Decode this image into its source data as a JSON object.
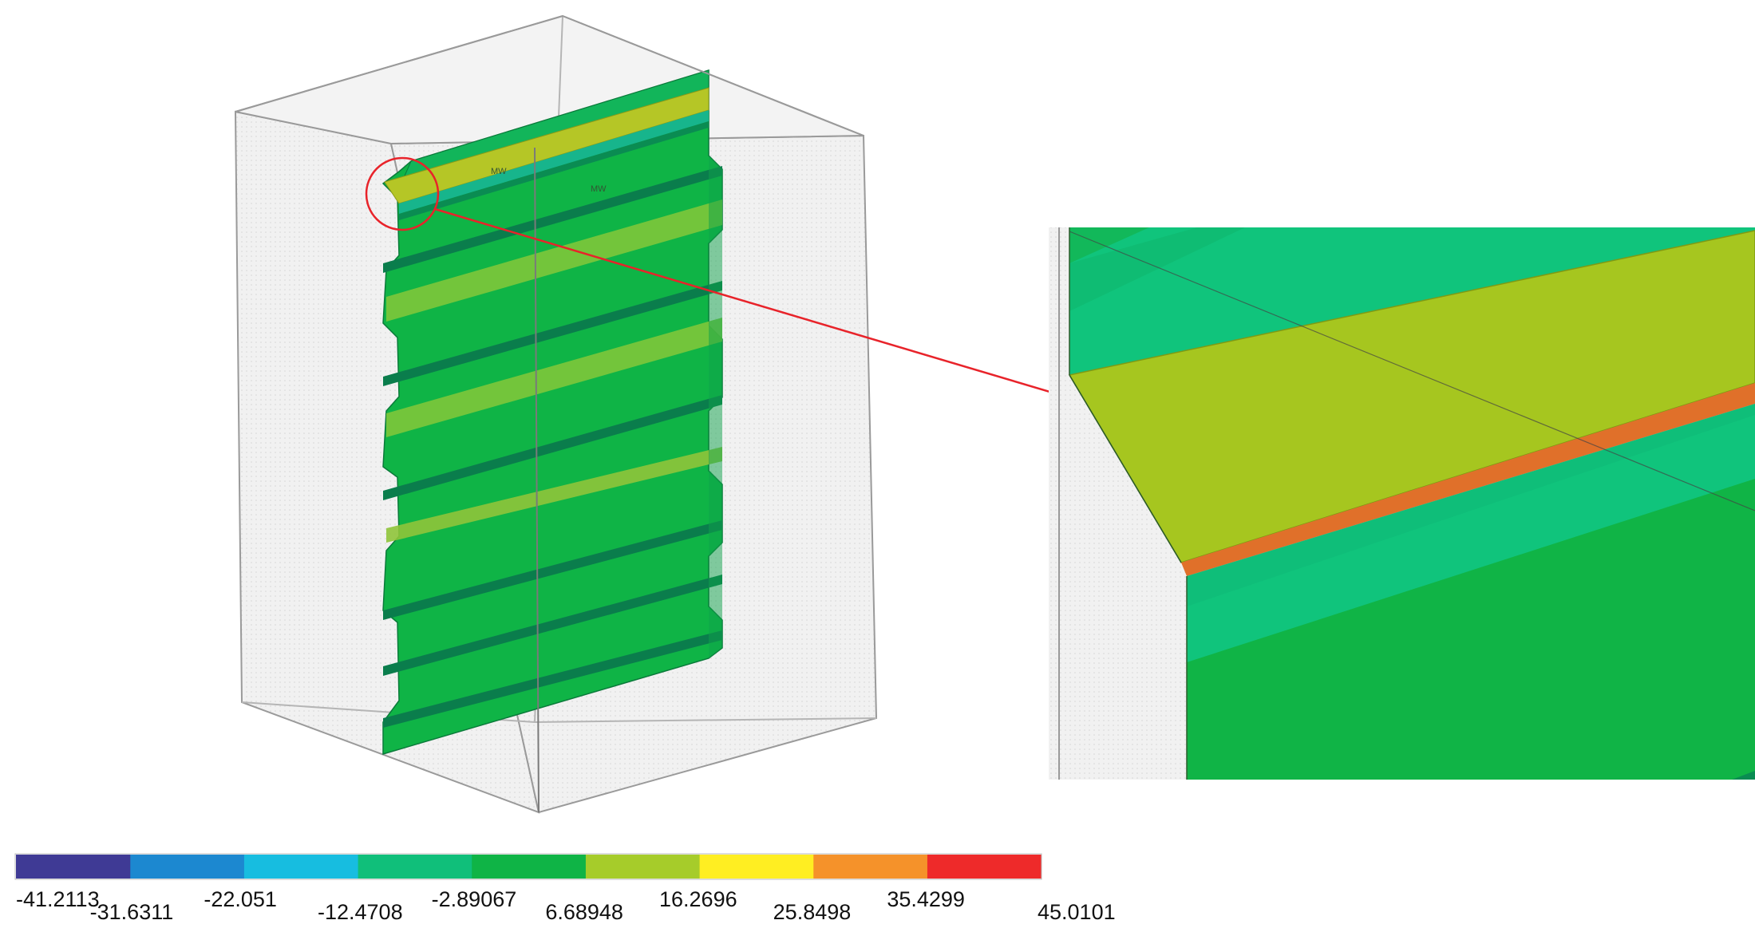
{
  "colors": {
    "page_background": "#ffffff",
    "box_fill": "#efefef",
    "box_edge": "#9a9a9a",
    "face_green": "#0fb446",
    "face_dark": "#0a8c52",
    "face_teal": "#0fc37a",
    "face_yellow": "#a6c61f",
    "face_orange": "#e0702a",
    "annotation_red": "#e8232a"
  },
  "icons": {
    "highlight_circle": "circle-outline",
    "zoom_arrow": "arrow-right"
  },
  "colorbar": {
    "colors": [
      "#3f3a95",
      "#1c88d0",
      "#17bde0",
      "#10bf7a",
      "#0fb446",
      "#a6cc2a",
      "#ffee22",
      "#f5922a",
      "#ee2a2a"
    ],
    "labels": [
      "-41.2113",
      "-31.6311",
      "-22.051",
      "-12.4708",
      "-2.89067",
      "6.68948",
      "16.2696",
      "25.8498",
      "35.4299",
      "45.0101"
    ]
  }
}
